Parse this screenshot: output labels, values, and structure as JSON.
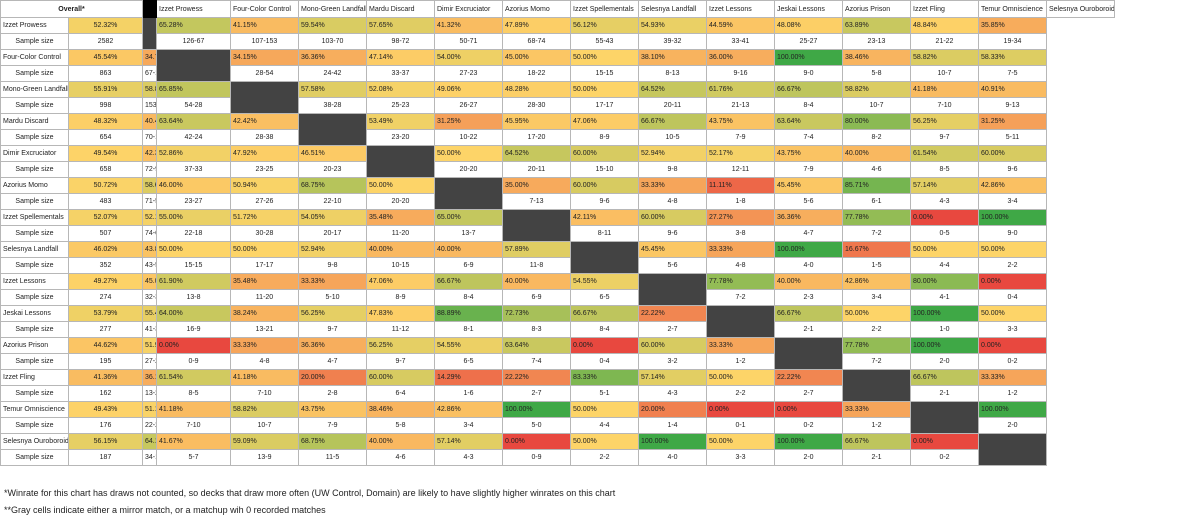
{
  "header": {
    "overall": "Overall*",
    "sample_label": "Sample size"
  },
  "decks": [
    "Izzet Prowess",
    "Four-Color Control",
    "Mono-Green Landfall",
    "Mardu Discard",
    "Dimir Excruciator",
    "Azorius Momo",
    "Izzet Spellementals",
    "Selesnya Landfall",
    "Izzet Lessons",
    "Jeskai Lessons",
    "Azorius Prison",
    "Izzet Fling",
    "Temur Omniscience",
    "Selesnya Ouroboroid"
  ],
  "rows": [
    {
      "deck": "Izzet Prowess",
      "overall": "52.32%",
      "sample": "2582",
      "wr": [
        null,
        "65.28%",
        "41.15%",
        "59.54%",
        "57.65%",
        "41.32%",
        "47.89%",
        "56.12%",
        "54.93%",
        "44.59%",
        "48.08%",
        "63.89%",
        "48.84%",
        "35.85%"
      ],
      "ss": [
        null,
        "126-67",
        "107-153",
        "103-70",
        "98-72",
        "50-71",
        "68-74",
        "55-43",
        "39-32",
        "33-41",
        "25-27",
        "23-13",
        "21-22",
        "19-34"
      ]
    },
    {
      "deck": "Four-Color Control",
      "overall": "45.54%",
      "sample": "863",
      "wr": [
        "34.72%",
        null,
        "34.15%",
        "36.36%",
        "47.14%",
        "54.00%",
        "45.00%",
        "50.00%",
        "38.10%",
        "36.00%",
        "100.00%",
        "38.46%",
        "58.82%",
        "58.33%"
      ],
      "ss": [
        "67-126",
        null,
        "28-54",
        "24-42",
        "33-37",
        "27-23",
        "18-22",
        "15-15",
        "8-13",
        "9-16",
        "9-0",
        "5-8",
        "10-7",
        "7-5"
      ]
    },
    {
      "deck": "Mono-Green Landfall",
      "overall": "55.91%",
      "sample": "998",
      "wr": [
        "58.85%",
        "65.85%",
        null,
        "57.58%",
        "52.08%",
        "49.06%",
        "48.28%",
        "50.00%",
        "64.52%",
        "61.76%",
        "66.67%",
        "58.82%",
        "41.18%",
        "40.91%"
      ],
      "ss": [
        "153-107",
        "54-28",
        null,
        "38-28",
        "25-23",
        "26-27",
        "28-30",
        "17-17",
        "20-11",
        "21-13",
        "8-4",
        "10-7",
        "7-10",
        "9-13"
      ]
    },
    {
      "deck": "Mardu Discard",
      "overall": "48.32%",
      "sample": "654",
      "wr": [
        "40.46%",
        "63.64%",
        "42.42%",
        null,
        "53.49%",
        "31.25%",
        "45.95%",
        "47.06%",
        "66.67%",
        "43.75%",
        "63.64%",
        "80.00%",
        "56.25%",
        "31.25%"
      ],
      "ss": [
        "70-103",
        "42-24",
        "28-38",
        null,
        "23-20",
        "10-22",
        "17-20",
        "8-9",
        "10-5",
        "7-9",
        "7-4",
        "8-2",
        "9-7",
        "5-11"
      ]
    },
    {
      "deck": "Dimir Excruciator",
      "overall": "49.54%",
      "sample": "658",
      "wr": [
        "42.35%",
        "52.86%",
        "47.92%",
        "46.51%",
        null,
        "50.00%",
        "64.52%",
        "60.00%",
        "52.94%",
        "52.17%",
        "43.75%",
        "40.00%",
        "61.54%",
        "60.00%"
      ],
      "ss": [
        "72-98",
        "37-33",
        "23-25",
        "20-23",
        null,
        "20-20",
        "20-11",
        "15-10",
        "9-8",
        "12-11",
        "7-9",
        "4-6",
        "8-5",
        "9-6"
      ]
    },
    {
      "deck": "Azorius Momo",
      "overall": "50.72%",
      "sample": "483",
      "wr": [
        "58.68%",
        "46.00%",
        "50.94%",
        "68.75%",
        "50.00%",
        null,
        "35.00%",
        "60.00%",
        "33.33%",
        "11.11%",
        "45.45%",
        "85.71%",
        "57.14%",
        "42.86%"
      ],
      "ss": [
        "71-50",
        "23-27",
        "27-26",
        "22-10",
        "20-20",
        null,
        "7-13",
        "9-6",
        "4-8",
        "1-8",
        "5-6",
        "6-1",
        "4-3",
        "3-4"
      ]
    },
    {
      "deck": "Izzet Spellementals",
      "overall": "52.07%",
      "sample": "507",
      "wr": [
        "52.11%",
        "55.00%",
        "51.72%",
        "54.05%",
        "35.48%",
        "65.00%",
        null,
        "42.11%",
        "60.00%",
        "27.27%",
        "36.36%",
        "77.78%",
        "0.00%",
        "100.00%"
      ],
      "ss": [
        "74-68",
        "22-18",
        "30-28",
        "20-17",
        "11-20",
        "13-7",
        null,
        "8-11",
        "9-6",
        "3-8",
        "4-7",
        "7-2",
        "0-5",
        "9-0"
      ]
    },
    {
      "deck": "Selesnya Landfall",
      "overall": "46.02%",
      "sample": "352",
      "wr": [
        "43.88%",
        "50.00%",
        "50.00%",
        "52.94%",
        "40.00%",
        "40.00%",
        "57.89%",
        null,
        "45.45%",
        "33.33%",
        "100.00%",
        "16.67%",
        "50.00%",
        "50.00%"
      ],
      "ss": [
        "43-55",
        "15-15",
        "17-17",
        "9-8",
        "10-15",
        "6-9",
        "11-8",
        null,
        "5-6",
        "4-8",
        "4-0",
        "1-5",
        "4-4",
        "2-2"
      ]
    },
    {
      "deck": "Izzet Lessons",
      "overall": "49.27%",
      "sample": "274",
      "wr": [
        "45.07%",
        "61.90%",
        "35.48%",
        "33.33%",
        "47.06%",
        "66.67%",
        "40.00%",
        "54.55%",
        null,
        "77.78%",
        "40.00%",
        "42.86%",
        "80.00%",
        "0.00%"
      ],
      "ss": [
        "32-39",
        "13-8",
        "11-20",
        "5-10",
        "8-9",
        "8-4",
        "6-9",
        "6-5",
        null,
        "7-2",
        "2-3",
        "3-4",
        "4-1",
        "0-4"
      ]
    },
    {
      "deck": "Jeskai Lessons",
      "overall": "53.79%",
      "sample": "277",
      "wr": [
        "55.41%",
        "64.00%",
        "38.24%",
        "56.25%",
        "47.83%",
        "88.89%",
        "72.73%",
        "66.67%",
        "22.22%",
        null,
        "66.67%",
        "50.00%",
        "100.00%",
        "50.00%"
      ],
      "ss": [
        "41-33",
        "16-9",
        "13-21",
        "9-7",
        "11-12",
        "8-1",
        "8-3",
        "8-4",
        "2-7",
        null,
        "2-1",
        "2-2",
        "1-0",
        "3-3"
      ]
    },
    {
      "deck": "Azorius Prison",
      "overall": "44.62%",
      "sample": "195",
      "wr": [
        "51.92%",
        "0.00%",
        "33.33%",
        "36.36%",
        "56.25%",
        "54.55%",
        "63.64%",
        "0.00%",
        "60.00%",
        "33.33%",
        null,
        "77.78%",
        "100.00%",
        "0.00%"
      ],
      "ss": [
        "27-25",
        "0-9",
        "4-8",
        "4-7",
        "9-7",
        "6-5",
        "7-4",
        "0-4",
        "3-2",
        "1-2",
        null,
        "7-2",
        "2-0",
        "0-2"
      ]
    },
    {
      "deck": "Izzet Fling",
      "overall": "41.36%",
      "sample": "162",
      "wr": [
        "36.11%",
        "61.54%",
        "41.18%",
        "20.00%",
        "60.00%",
        "14.29%",
        "22.22%",
        "83.33%",
        "57.14%",
        "50.00%",
        "22.22%",
        null,
        "66.67%",
        "33.33%"
      ],
      "ss": [
        "13-23",
        "8-5",
        "7-10",
        "2-8",
        "6-4",
        "1-6",
        "2-7",
        "5-1",
        "4-3",
        "2-2",
        "2-7",
        null,
        "2-1",
        "1-2"
      ]
    },
    {
      "deck": "Temur Omniscience",
      "overall": "49.43%",
      "sample": "176",
      "wr": [
        "51.16%",
        "41.18%",
        "58.82%",
        "43.75%",
        "38.46%",
        "42.86%",
        "100.00%",
        "50.00%",
        "20.00%",
        "0.00%",
        "0.00%",
        "33.33%",
        null,
        "100.00%"
      ],
      "ss": [
        "22-21",
        "7-10",
        "10-7",
        "7-9",
        "5-8",
        "3-4",
        "5-0",
        "4-4",
        "1-4",
        "0-1",
        "0-2",
        "1-2",
        null,
        "2-0"
      ]
    },
    {
      "deck": "Selesnya Ouroboroid",
      "overall": "56.15%",
      "sample": "187",
      "wr": [
        "64.15%",
        "41.67%",
        "59.09%",
        "68.75%",
        "40.00%",
        "57.14%",
        "0.00%",
        "50.00%",
        "100.00%",
        "50.00%",
        "100.00%",
        "66.67%",
        "0.00%",
        null
      ],
      "ss": [
        "34-19",
        "5-7",
        "13-9",
        "11-5",
        "4-6",
        "4-3",
        "0-9",
        "2-2",
        "4-0",
        "3-3",
        "2-0",
        "2-1",
        "0-2",
        null
      ]
    }
  ],
  "notes": [
    "*Winrate for this chart has draws not counted, so decks that draw more often (UW Control, Domain) are likely to have slightly higher winrates on this chart",
    "**Gray cells indicate either a mirror match, or a matchup wih 0 recorded matches"
  ],
  "colors": {
    "red": "#e8483f",
    "yellow": "#fdd468",
    "green": "#3fa846",
    "mirror_gray": "#434343",
    "gap_black": "#000000"
  }
}
